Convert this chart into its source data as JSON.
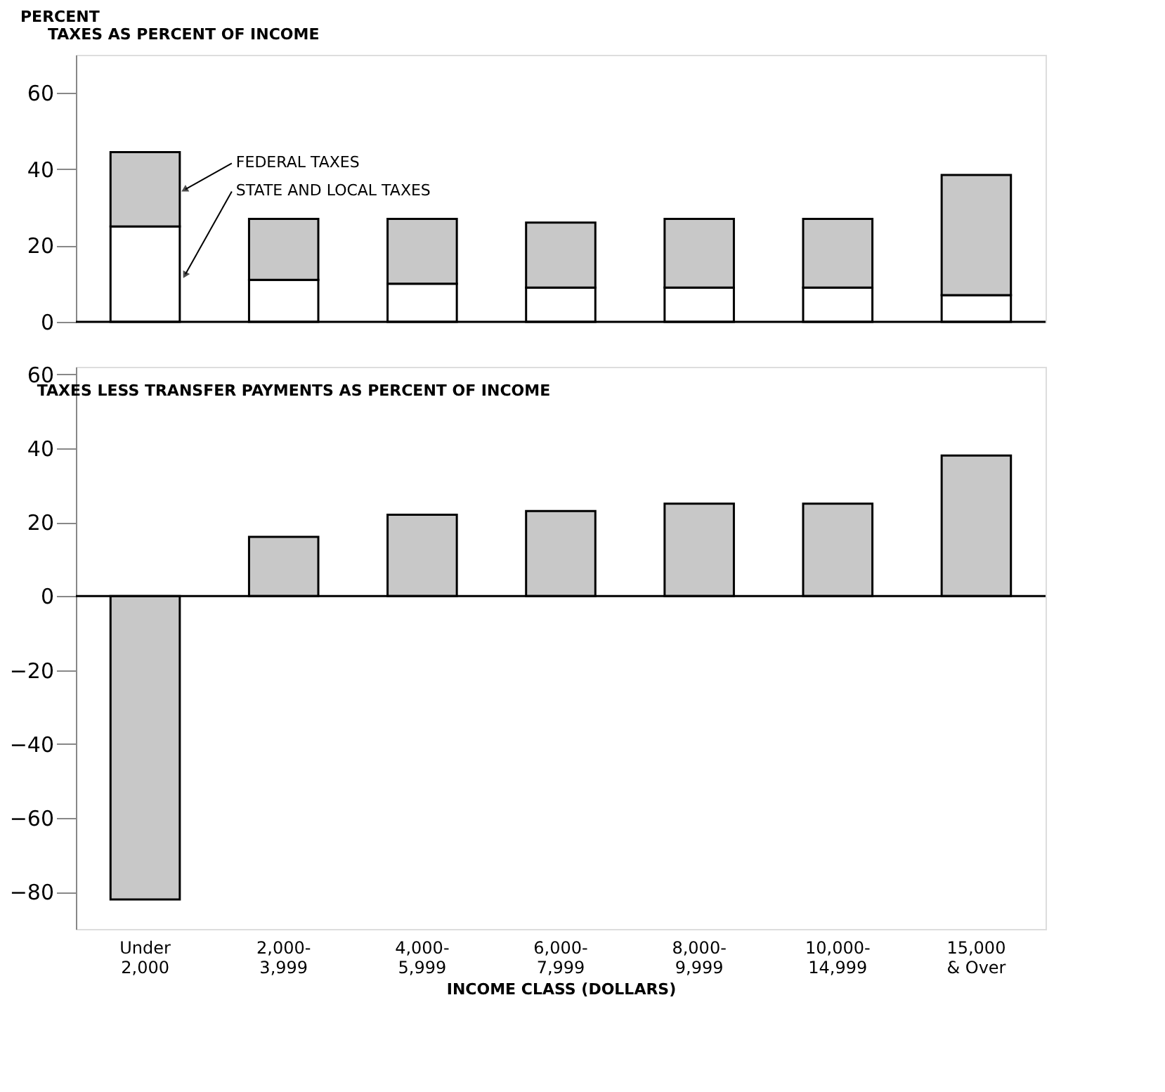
{
  "chart_data": [
    {
      "type": "bar",
      "title": "TAXES AS PERCENT OF INCOME",
      "ylabel": "PERCENT",
      "categories": [
        null,
        null,
        null,
        null,
        null,
        null,
        null
      ],
      "series": [
        {
          "name": "STATE AND LOCAL TAXES",
          "color": "#ffffff",
          "values": [
            25,
            11,
            10,
            9,
            9,
            9,
            7
          ]
        },
        {
          "name": "FEDERAL TAXES",
          "color": "#c8c8c8",
          "values": [
            19.5,
            16,
            17,
            17,
            18,
            18,
            31.5
          ]
        }
      ],
      "stacked": true,
      "ylim": [
        0,
        70
      ],
      "yticks": [
        0,
        20,
        40,
        60
      ],
      "tick_labels": "y"
    },
    {
      "type": "bar",
      "title": "TAXES LESS TRANSFER PAYMENTS AS PERCENT OF INCOME",
      "xlabel": "INCOME CLASS (DOLLARS)",
      "categories": [
        "Under\n2,000",
        "2,000-\n3,999",
        "4,000-\n5,999",
        "6,000-\n7,999",
        "8,000-\n9,999",
        "10,000-\n14,999",
        "15,000\n& Over"
      ],
      "series": [
        {
          "color": "#c8c8c8",
          "values": [
            -82,
            16,
            22,
            23,
            25,
            25,
            38
          ]
        }
      ],
      "ylim": [
        -90,
        62
      ],
      "yticks": [
        -80,
        -60,
        -40,
        -20,
        0,
        20,
        40,
        60
      ]
    }
  ]
}
